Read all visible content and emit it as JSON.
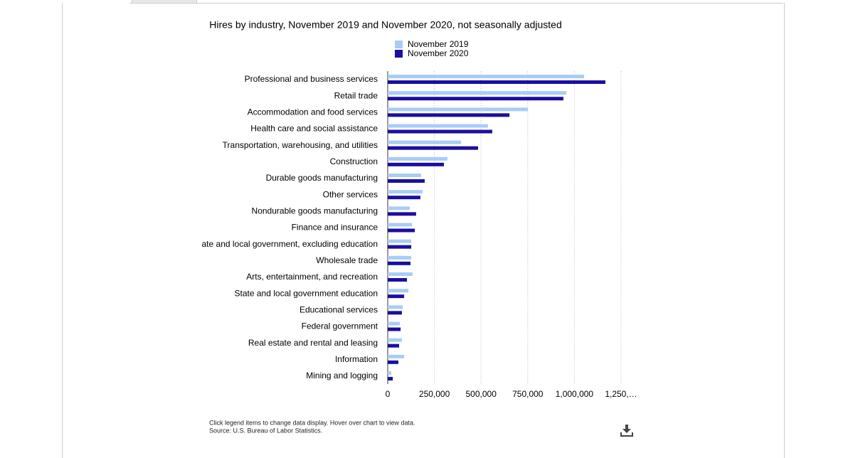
{
  "chart_data": {
    "type": "bar",
    "orientation": "horizontal",
    "title": "Hires by industry, November 2019 and November 2020, not seasonally adjusted",
    "categories": [
      "Professional and business services",
      "Retail trade",
      "Accommodation and food services",
      "Health care and social assistance",
      "Transportation, warehousing, and utilities",
      "Construction",
      "Durable goods manufacturing",
      "Other services",
      "Nondurable goods manufacturing",
      "Finance and insurance",
      "ate and local government, excluding education",
      "Wholesale trade",
      "Arts, entertainment, and recreation",
      "State and local government education",
      "Educational services",
      "Federal government",
      "Real estate and rental and leasing",
      "Information",
      "Mining and logging"
    ],
    "series": [
      {
        "name": "November 2019",
        "color": "#a8cdf5",
        "values": [
          1052000,
          957000,
          751000,
          537000,
          393000,
          320000,
          179000,
          187000,
          118000,
          130000,
          126000,
          126000,
          133000,
          111000,
          80000,
          65000,
          76000,
          88000,
          19000
        ]
      },
      {
        "name": "November 2020",
        "color": "#1a0fa0",
        "values": [
          1166000,
          941000,
          652000,
          560000,
          484000,
          301000,
          198000,
          175000,
          152000,
          145000,
          126000,
          122000,
          103000,
          88000,
          76000,
          69000,
          61000,
          57000,
          27000
        ]
      }
    ],
    "xlim": [
      0,
      1250000
    ],
    "xticks": [
      0,
      {
        "value": 250000,
        "label": "250,000"
      },
      {
        "value": 500000,
        "label": "500,000"
      },
      {
        "value": 750000,
        "label": "750,000"
      },
      {
        "value": 1000000,
        "label": "1,000,000"
      },
      {
        "value": 1250000,
        "label": "1,250,…"
      }
    ],
    "grid": true,
    "notes": [
      "Click legend items to change data display. Hover over chart to view data.",
      "Source: U.S. Bureau of Labor Statistics."
    ]
  }
}
